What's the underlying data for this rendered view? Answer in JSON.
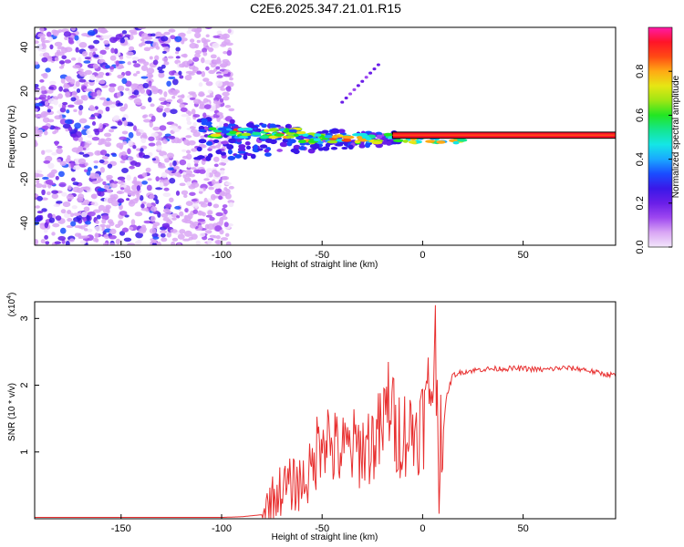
{
  "title": "C2E6.2025.347.21.01.R15",
  "chart_data": [
    {
      "type": "heatmap",
      "name": "spectrogram",
      "xlabel": "Height of straight line (km)",
      "ylabel": "Frequency (Hz)",
      "xlim": [
        -193,
        96
      ],
      "ylim": [
        -50,
        49
      ],
      "xticks": [
        -150,
        -100,
        -50,
        0,
        50
      ],
      "yticks": [
        -40,
        -20,
        0,
        20,
        40
      ],
      "colorbar": {
        "label": "Normalized spectral amplitude",
        "range": [
          0,
          1
        ],
        "ticks": [
          "0.0",
          "0.2",
          "0.4",
          "0.6",
          "0.8"
        ],
        "tick_values": [
          0,
          0.2,
          0.4,
          0.6,
          0.8
        ],
        "colors": [
          "#f3e6fb",
          "#d9a6f4",
          "#9e48f0",
          "#6a1ee8",
          "#3a18e8",
          "#1a4cff",
          "#1aa8ff",
          "#14e6e6",
          "#14e690",
          "#22e622",
          "#9ee614",
          "#e6e614",
          "#ffaa14",
          "#ff4a14",
          "#ff1428",
          "#ff1aa8"
        ]
      },
      "features": [
        {
          "label": "noise region",
          "x_range": [
            -193,
            -95
          ],
          "freq_range": [
            -50,
            49
          ]
        },
        {
          "label": "signal line",
          "x_range": [
            -110,
            96
          ],
          "freq_center": 0
        },
        {
          "label": "faint streak",
          "x": [
            -40,
            -22
          ],
          "freq": [
            15,
            32
          ]
        }
      ]
    },
    {
      "type": "line",
      "name": "snr",
      "xlabel": "Height of straight line (km)",
      "ylabel": "SNR (10 * v/v)",
      "scale_note": "(x10",
      "scale_exp": "4",
      "scale_close": ")",
      "xlim": [
        -193,
        96
      ],
      "ylim": [
        0,
        3.25
      ],
      "xticks": [
        -150,
        -100,
        -50,
        0,
        50
      ],
      "yticks": [
        1,
        2,
        3
      ],
      "color": "#e83030",
      "x": [
        -193,
        -100,
        -90,
        -80,
        -75,
        -70,
        -65,
        -60,
        -55,
        -50,
        -48,
        -45,
        -40,
        -35,
        -30,
        -25,
        -20,
        -16,
        -14,
        -10,
        -5,
        0,
        3,
        5,
        7,
        8,
        9,
        10,
        12,
        15,
        20,
        25,
        30,
        40,
        50,
        60,
        70,
        80,
        85,
        90,
        96
      ],
      "y": [
        0.02,
        0.02,
        0.03,
        0.06,
        0.3,
        0.45,
        0.5,
        0.55,
        0.7,
        1.4,
        1.3,
        1.05,
        1.0,
        1.05,
        1.05,
        1.15,
        1.3,
        1.9,
        1.3,
        1.3,
        1.3,
        1.45,
        1.8,
        2.25,
        2.45,
        0.3,
        1.6,
        1.2,
        1.85,
        2.15,
        2.2,
        2.22,
        2.24,
        2.25,
        2.25,
        2.23,
        2.26,
        2.24,
        2.2,
        2.17,
        2.15
      ]
    }
  ]
}
